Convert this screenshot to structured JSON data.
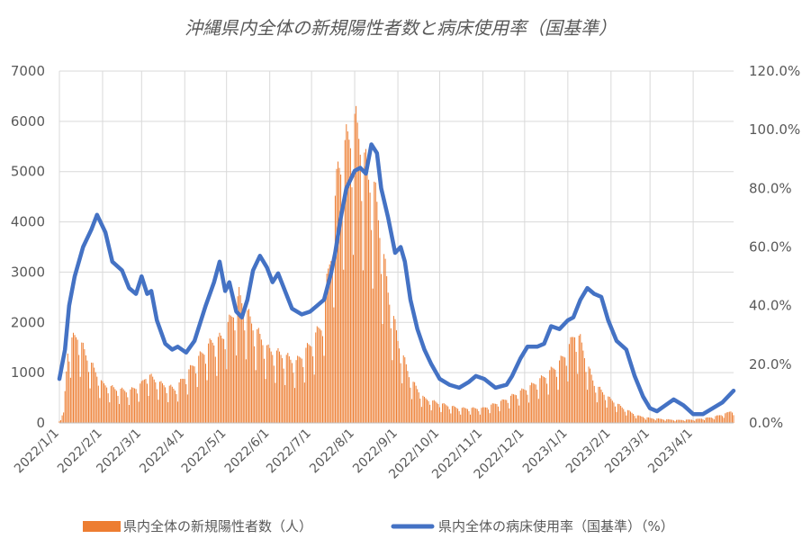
{
  "chart_data": {
    "type": "bar+line",
    "title": "沖縄県内全体の新規陽性者数と病床使用率（国基準）",
    "grid": "horizontal",
    "legend_position": "bottom",
    "left_axis": {
      "ylim": [
        0,
        7000
      ],
      "ticks": [
        "0",
        "1000",
        "2000",
        "3000",
        "4000",
        "5000",
        "6000",
        "7000"
      ]
    },
    "right_axis": {
      "ylim": [
        0,
        120
      ],
      "ticks": [
        "0.0%",
        "20.0%",
        "40.0%",
        "60.0%",
        "80.0%",
        "100.0%",
        "120.0%"
      ]
    },
    "x_axis": {
      "start": "2022/1/1",
      "end": "2023/4/30",
      "ticks": [
        "2022/1/1",
        "2022/2/1",
        "2022/3/1",
        "2022/4/1",
        "2022/5/1",
        "2022/6/1",
        "2022/7/1",
        "2022/8/1",
        "2022/9/1",
        "2022/10/1",
        "2022/11/1",
        "2022/12/1",
        "2023/1/1",
        "2023/2/1",
        "2023/3/1",
        "2023/4/1"
      ]
    },
    "series": [
      {
        "name": "県内全体の新規陽性者数（人）",
        "type": "bar",
        "axis": "left",
        "color": "#ED7D31",
        "points": [
          [
            "2022/1/1",
            50
          ],
          [
            "2022/1/4",
            200
          ],
          [
            "2022/1/7",
            1500
          ],
          [
            "2022/1/10",
            1700
          ],
          [
            "2022/1/14",
            1800
          ],
          [
            "2022/1/20",
            1400
          ],
          [
            "2022/1/26",
            1100
          ],
          [
            "2022/2/1",
            800
          ],
          [
            "2022/2/10",
            700
          ],
          [
            "2022/2/20",
            650
          ],
          [
            "2022/3/1",
            800
          ],
          [
            "2022/3/5",
            1000
          ],
          [
            "2022/3/15",
            800
          ],
          [
            "2022/3/25",
            700
          ],
          [
            "2022/4/1",
            950
          ],
          [
            "2022/4/10",
            1300
          ],
          [
            "2022/4/20",
            1650
          ],
          [
            "2022/4/28",
            1750
          ],
          [
            "2022/5/5",
            2200
          ],
          [
            "2022/5/10",
            2600
          ],
          [
            "2022/5/15",
            2300
          ],
          [
            "2022/5/20",
            2000
          ],
          [
            "2022/5/31",
            1500
          ],
          [
            "2022/6/10",
            1400
          ],
          [
            "2022/6/20",
            1250
          ],
          [
            "2022/6/30",
            1600
          ],
          [
            "2022/7/8",
            2000
          ],
          [
            "2022/7/15",
            3500
          ],
          [
            "2022/7/20",
            5200
          ],
          [
            "2022/7/27",
            5800
          ],
          [
            "2022/8/1",
            6150
          ],
          [
            "2022/8/5",
            5800
          ],
          [
            "2022/8/10",
            5100
          ],
          [
            "2022/8/15",
            4800
          ],
          [
            "2022/8/20",
            3800
          ],
          [
            "2022/8/25",
            2700
          ],
          [
            "2022/9/1",
            1700
          ],
          [
            "2022/9/10",
            900
          ],
          [
            "2022/9/20",
            500
          ],
          [
            "2022/10/1",
            400
          ],
          [
            "2022/10/15",
            300
          ],
          [
            "2022/11/1",
            300
          ],
          [
            "2022/11/15",
            450
          ],
          [
            "2022/11/25",
            600
          ],
          [
            "2022/12/5",
            750
          ],
          [
            "2022/12/15",
            950
          ],
          [
            "2022/12/25",
            1200
          ],
          [
            "2023/1/1",
            1500
          ],
          [
            "2023/1/6",
            1850
          ],
          [
            "2023/1/10",
            1700
          ],
          [
            "2023/1/15",
            1200
          ],
          [
            "2023/1/20",
            800
          ],
          [
            "2023/1/31",
            500
          ],
          [
            "2023/2/10",
            300
          ],
          [
            "2023/2/20",
            150
          ],
          [
            "2023/3/1",
            100
          ],
          [
            "2023/3/10",
            80
          ],
          [
            "2023/3/20",
            60
          ],
          [
            "2023/4/1",
            70
          ],
          [
            "2023/4/15",
            120
          ],
          [
            "2023/4/25",
            200
          ],
          [
            "2023/4/30",
            280
          ]
        ]
      },
      {
        "name": "県内全体の病床使用率（国基準）（%）",
        "type": "line",
        "axis": "right",
        "color": "#4472C4",
        "points": [
          [
            "2022/1/1",
            15
          ],
          [
            "2022/1/5",
            25
          ],
          [
            "2022/1/8",
            40
          ],
          [
            "2022/1/12",
            50
          ],
          [
            "2022/1/18",
            60
          ],
          [
            "2022/1/24",
            66
          ],
          [
            "2022/1/28",
            71
          ],
          [
            "2022/2/3",
            65
          ],
          [
            "2022/2/8",
            55
          ],
          [
            "2022/2/15",
            52
          ],
          [
            "2022/2/20",
            46
          ],
          [
            "2022/2/25",
            44
          ],
          [
            "2022/3/1",
            50
          ],
          [
            "2022/3/5",
            44
          ],
          [
            "2022/3/8",
            45
          ],
          [
            "2022/3/12",
            35
          ],
          [
            "2022/3/18",
            27
          ],
          [
            "2022/3/23",
            25
          ],
          [
            "2022/3/27",
            26
          ],
          [
            "2022/4/2",
            24
          ],
          [
            "2022/4/8",
            28
          ],
          [
            "2022/4/12",
            34
          ],
          [
            "2022/4/16",
            40
          ],
          [
            "2022/4/22",
            48
          ],
          [
            "2022/4/26",
            55
          ],
          [
            "2022/4/30",
            45
          ],
          [
            "2022/5/3",
            48
          ],
          [
            "2022/5/8",
            38
          ],
          [
            "2022/5/12",
            36
          ],
          [
            "2022/5/16",
            42
          ],
          [
            "2022/5/20",
            52
          ],
          [
            "2022/5/25",
            57
          ],
          [
            "2022/5/30",
            53
          ],
          [
            "2022/6/3",
            48
          ],
          [
            "2022/6/7",
            51
          ],
          [
            "2022/6/12",
            45
          ],
          [
            "2022/6/17",
            39
          ],
          [
            "2022/6/24",
            37
          ],
          [
            "2022/6/30",
            38
          ],
          [
            "2022/7/5",
            40
          ],
          [
            "2022/7/10",
            42
          ],
          [
            "2022/7/15",
            51
          ],
          [
            "2022/7/18",
            58
          ],
          [
            "2022/7/22",
            70
          ],
          [
            "2022/7/26",
            80
          ],
          [
            "2022/8/1",
            86
          ],
          [
            "2022/8/5",
            87
          ],
          [
            "2022/8/9",
            85
          ],
          [
            "2022/8/13",
            95
          ],
          [
            "2022/8/17",
            92
          ],
          [
            "2022/8/20",
            80
          ],
          [
            "2022/8/25",
            70
          ],
          [
            "2022/8/30",
            58
          ],
          [
            "2022/9/3",
            60
          ],
          [
            "2022/9/6",
            55
          ],
          [
            "2022/9/10",
            42
          ],
          [
            "2022/9/15",
            32
          ],
          [
            "2022/9/20",
            25
          ],
          [
            "2022/9/25",
            20
          ],
          [
            "2022/10/1",
            15
          ],
          [
            "2022/10/8",
            13
          ],
          [
            "2022/10/15",
            12
          ],
          [
            "2022/10/22",
            14
          ],
          [
            "2022/10/27",
            16
          ],
          [
            "2022/11/2",
            15
          ],
          [
            "2022/11/10",
            12
          ],
          [
            "2022/11/18",
            13
          ],
          [
            "2022/11/22",
            16
          ],
          [
            "2022/11/28",
            22
          ],
          [
            "2022/12/3",
            26
          ],
          [
            "2022/12/10",
            26
          ],
          [
            "2022/12/15",
            27
          ],
          [
            "2022/12/20",
            33
          ],
          [
            "2022/12/26",
            32
          ],
          [
            "2023/1/1",
            35
          ],
          [
            "2023/1/5",
            36
          ],
          [
            "2023/1/10",
            42
          ],
          [
            "2023/1/15",
            46
          ],
          [
            "2023/1/20",
            44
          ],
          [
            "2023/1/25",
            43
          ],
          [
            "2023/1/30",
            35
          ],
          [
            "2023/2/5",
            28
          ],
          [
            "2023/2/12",
            25
          ],
          [
            "2023/2/18",
            16
          ],
          [
            "2023/2/24",
            9
          ],
          [
            "2023/3/1",
            5
          ],
          [
            "2023/3/6",
            4
          ],
          [
            "2023/3/12",
            6
          ],
          [
            "2023/3/18",
            8
          ],
          [
            "2023/3/25",
            6
          ],
          [
            "2023/4/1",
            3
          ],
          [
            "2023/4/8",
            3
          ],
          [
            "2023/4/15",
            5
          ],
          [
            "2023/4/22",
            7
          ],
          [
            "2023/4/30",
            11
          ]
        ]
      }
    ],
    "legend": [
      "県内全体の新規陽性者数（人）",
      "県内全体の病床使用率（国基準）（%）"
    ]
  }
}
